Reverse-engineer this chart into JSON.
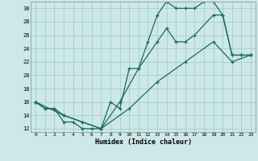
{
  "xlabel": "Humidex (Indice chaleur)",
  "bg_color": "#cce8e8",
  "line_color": "#1a6b5a",
  "grid_color": "#aacccc",
  "xlim": [
    -0.5,
    23.5
  ],
  "ylim": [
    11.5,
    31
  ],
  "xticks": [
    0,
    1,
    2,
    3,
    4,
    5,
    6,
    7,
    8,
    9,
    10,
    11,
    12,
    13,
    14,
    15,
    16,
    17,
    18,
    19,
    20,
    21,
    22,
    23
  ],
  "yticks": [
    12,
    14,
    16,
    18,
    20,
    22,
    24,
    26,
    28,
    30
  ],
  "line1_x": [
    0,
    1,
    2,
    3,
    4,
    5,
    6,
    7,
    8,
    9,
    10,
    11,
    12,
    13,
    14,
    15,
    16,
    17,
    18,
    19,
    20,
    21,
    22,
    23
  ],
  "line1_y": [
    16,
    15,
    15,
    13,
    13,
    12,
    12,
    12,
    16,
    15,
    21,
    21,
    25,
    29,
    31,
    30,
    30,
    30,
    31,
    31,
    29,
    23,
    23,
    23
  ],
  "line2_x": [
    0,
    1,
    2,
    3,
    5,
    7,
    9,
    11,
    13,
    14,
    15,
    16,
    17,
    19,
    20,
    21,
    22,
    23
  ],
  "line2_y": [
    16,
    15,
    15,
    14,
    13,
    12,
    16,
    21,
    25,
    27,
    25,
    25,
    26,
    29,
    29,
    23,
    23,
    23
  ],
  "line3_x": [
    0,
    3,
    7,
    10,
    13,
    16,
    19,
    21,
    23
  ],
  "line3_y": [
    16,
    14,
    12,
    15,
    19,
    22,
    25,
    22,
    23
  ]
}
